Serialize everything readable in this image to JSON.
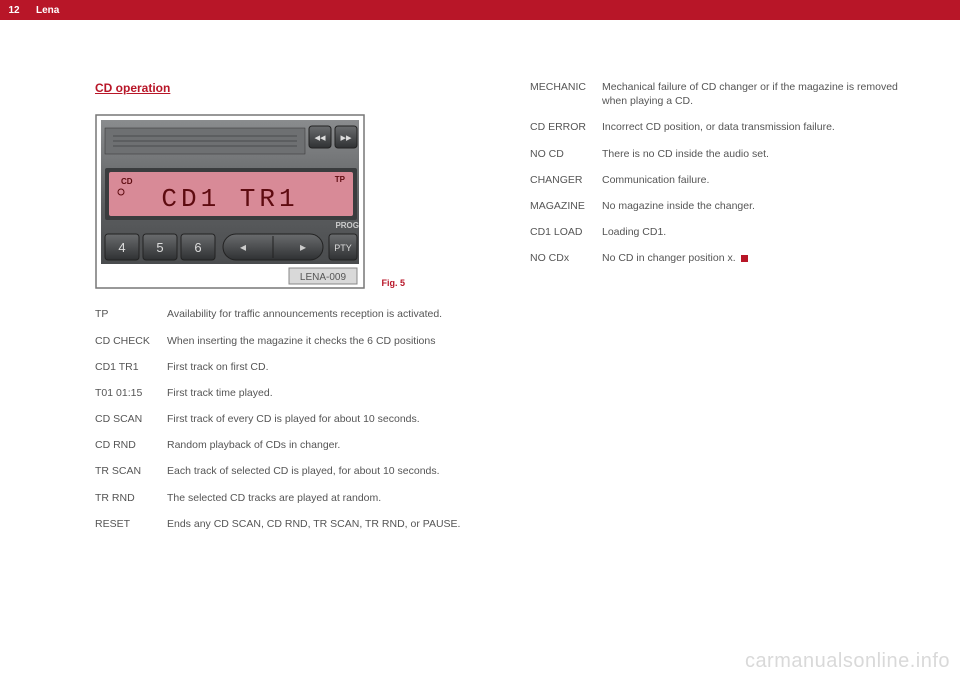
{
  "header": {
    "page_number": "12",
    "section": "Lena"
  },
  "left": {
    "heading": "CD operation",
    "figure": {
      "lcd_text": "CD1 TR1",
      "cd_label": "CD",
      "tp_label": "TP",
      "prog_label": "PROG",
      "pty_label": "PTY",
      "buttons": [
        "4",
        "5",
        "6"
      ],
      "image_code": "LENA-009",
      "caption": "Fig. 5"
    },
    "definitions": [
      {
        "term": "TP",
        "desc": "Availability for traffic announcements reception is activated."
      },
      {
        "term": "CD CHECK",
        "desc": "When inserting the magazine it checks the 6 CD positions"
      },
      {
        "term": "CD1 TR1",
        "desc": "First track on first CD."
      },
      {
        "term": "T01 01:15",
        "desc": "First track time played."
      },
      {
        "term": "CD SCAN",
        "desc": "First track of every CD  is played for about 10 seconds."
      },
      {
        "term": "CD RND",
        "desc": "Random playback of CDs in changer."
      },
      {
        "term": "TR SCAN",
        "desc": "Each track of selected CD is played, for about 10 seconds."
      },
      {
        "term": "TR RND",
        "desc": "The selected CD tracks are played at random."
      },
      {
        "term": "RESET",
        "desc": "Ends any CD SCAN, CD RND, TR SCAN, TR RND, or PAUSE."
      }
    ]
  },
  "right": {
    "definitions": [
      {
        "term": "MECHANIC",
        "desc": "Mechanical failure of CD changer or if the magazine is removed when playing a CD."
      },
      {
        "term": "CD ERROR",
        "desc": "Incorrect CD position, or data transmission failure."
      },
      {
        "term": "NO CD",
        "desc": "There is no CD inside the audio set."
      },
      {
        "term": "CHANGER",
        "desc": "Communication failure."
      },
      {
        "term": "MAGAZINE",
        "desc": "No magazine inside the changer."
      },
      {
        "term": "CD1 LOAD",
        "desc": "Loading CD1."
      },
      {
        "term": "NO CDx",
        "desc": "No CD in changer position x.",
        "endmark": true
      }
    ]
  },
  "watermark": "carmanualsonline.info",
  "colors": {
    "brand_red": "#b81628",
    "body_text": "#555555",
    "radio_body": "#5b5d5f",
    "radio_body_light": "#8a8c8e",
    "lcd_bg": "#d88a97",
    "lcd_text": "#5e0b10",
    "button_dark": "#3a3c3e",
    "label_bg": "#d9d9d9"
  }
}
